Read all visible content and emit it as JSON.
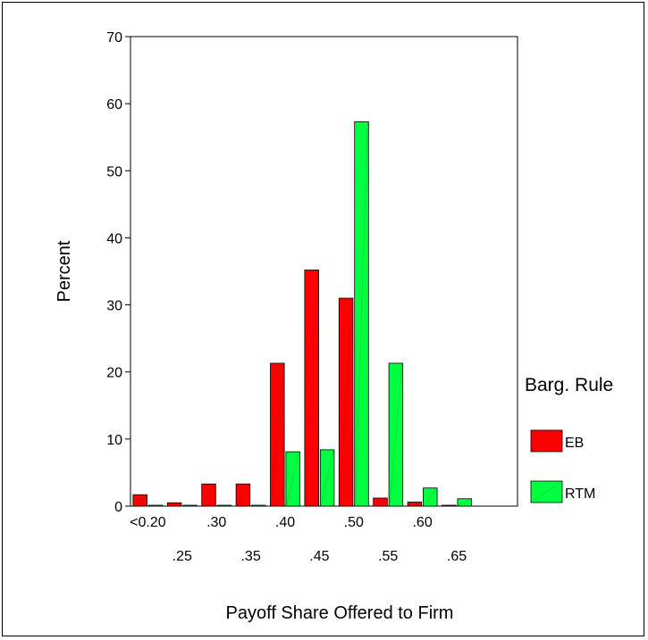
{
  "chart_data": {
    "type": "bar",
    "title": "",
    "xlabel": "Payoff Share Offered to Firm",
    "ylabel": "Percent",
    "ylim": [
      0,
      70
    ],
    "yticks": [
      0,
      10,
      20,
      30,
      40,
      50,
      60,
      70
    ],
    "categories": [
      "<0.20",
      ".25",
      ".30",
      ".35",
      ".40",
      ".45",
      ".50",
      ".55",
      ".60",
      ".65"
    ],
    "series": [
      {
        "name": "EB",
        "color": "#ff0000",
        "values": [
          1.7,
          0.5,
          3.3,
          3.3,
          21.3,
          35.2,
          31.0,
          1.2,
          0.6,
          0
        ]
      },
      {
        "name": "RTM",
        "color": "#00ff40",
        "values": [
          0,
          0,
          0,
          0,
          8.1,
          8.4,
          57.3,
          21.3,
          2.7,
          1.1
        ]
      }
    ],
    "legend": {
      "title": "Barg. Rule",
      "placement": "right"
    },
    "grid": false
  }
}
